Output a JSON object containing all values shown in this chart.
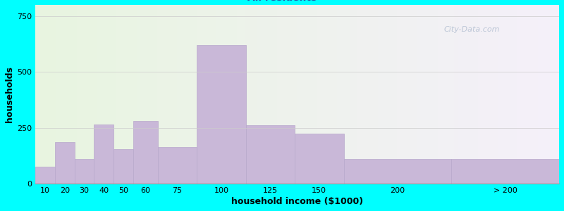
{
  "xlabel": "household income ($1000)",
  "ylabel": "households",
  "bg_outer": "#00FFFF",
  "bg_inner_left": "#e8f5e0",
  "bg_inner_right": "#f5f0fa",
  "bar_color": "#c9b8d8",
  "bar_edge_color": "#b8a8cc",
  "categories": [
    "10",
    "20",
    "30",
    "40",
    "50",
    "60",
    "75",
    "100",
    "125",
    "150",
    "200",
    "> 200"
  ],
  "values": [
    75,
    185,
    110,
    265,
    155,
    280,
    165,
    620,
    260,
    225,
    110,
    110
  ],
  "bar_left_edges": [
    5,
    15,
    25,
    35,
    45,
    55,
    67.5,
    87.5,
    112.5,
    137.5,
    162.5,
    217.5
  ],
  "bar_right_edges": [
    15,
    25,
    35,
    45,
    55,
    67.5,
    87.5,
    112.5,
    137.5,
    162.5,
    217.5,
    272.5
  ],
  "xlim": [
    5,
    272.5
  ],
  "ylim": [
    0,
    800
  ],
  "yticks": [
    0,
    250,
    500,
    750
  ],
  "title_fontsize": 12,
  "subtitle_fontsize": 10,
  "axis_label_fontsize": 9,
  "tick_fontsize": 8,
  "watermark_text": "City-Data.com"
}
